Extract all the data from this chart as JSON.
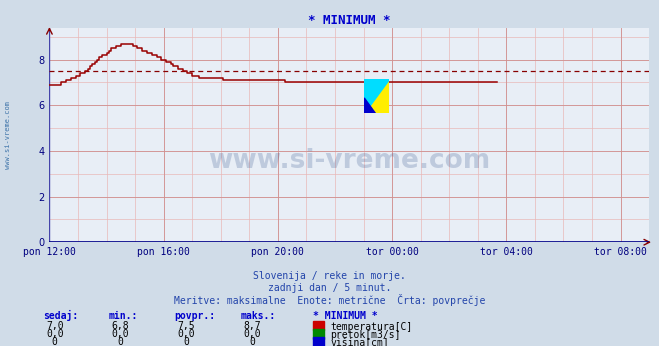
{
  "title": "* MINIMUM *",
  "title_color": "#0000cc",
  "bg_color": "#d0dce8",
  "plot_bg_color": "#e8eef6",
  "line_color": "#990000",
  "avg_line_color": "#880000",
  "avg_line_value": 7.5,
  "tick_color": "#000080",
  "ylabel_ticks": [
    0,
    2,
    4,
    6,
    8
  ],
  "ylim": [
    0,
    9.4
  ],
  "x_tick_labels": [
    "pon 12:00",
    "pon 16:00",
    "pon 20:00",
    "tor 00:00",
    "tor 04:00",
    "tor 08:00"
  ],
  "tick_positions": [
    0,
    48,
    96,
    144,
    192,
    240
  ],
  "xlim": [
    0,
    252
  ],
  "subtitle1": "Slovenija / reke in morje.",
  "subtitle2": "zadnji dan / 5 minut.",
  "subtitle3": "Meritve: maksimalne  Enote: metrične  Črta: povprečje",
  "subtitle_color": "#2244aa",
  "watermark_text": "www.si-vreme.com",
  "watermark_color": "#1a3a7a",
  "left_label": "www.si-vreme.com",
  "legend_title": "* MINIMUM *",
  "legend_items": [
    "temperatura[C]",
    "pretok[m3/s]",
    "višina[cm]"
  ],
  "legend_colors": [
    "#cc0000",
    "#008800",
    "#0000cc"
  ],
  "table_headers": [
    "sedaj:",
    "min.:",
    "povpr.:",
    "maks.:"
  ],
  "table_rows": [
    [
      "7,0",
      "6,8",
      "7,5",
      "8,7"
    ],
    [
      "0,0",
      "0,0",
      "0,0",
      "0,0"
    ],
    [
      "0",
      "0",
      "0",
      "0"
    ]
  ],
  "temp_data_y": [
    6.9,
    6.9,
    6.9,
    6.9,
    6.9,
    7.0,
    7.0,
    7.1,
    7.1,
    7.2,
    7.2,
    7.3,
    7.3,
    7.4,
    7.4,
    7.5,
    7.6,
    7.7,
    7.8,
    7.9,
    8.0,
    8.1,
    8.2,
    8.2,
    8.3,
    8.4,
    8.5,
    8.5,
    8.6,
    8.6,
    8.7,
    8.7,
    8.7,
    8.7,
    8.7,
    8.6,
    8.6,
    8.5,
    8.5,
    8.4,
    8.4,
    8.3,
    8.3,
    8.2,
    8.2,
    8.1,
    8.1,
    8.0,
    8.0,
    7.9,
    7.9,
    7.8,
    7.7,
    7.7,
    7.6,
    7.6,
    7.5,
    7.5,
    7.4,
    7.4,
    7.3,
    7.3,
    7.3,
    7.2,
    7.2,
    7.2,
    7.2,
    7.2,
    7.2,
    7.2,
    7.2,
    7.2,
    7.2,
    7.1,
    7.1,
    7.1,
    7.1,
    7.1,
    7.1,
    7.1,
    7.1,
    7.1,
    7.1,
    7.1,
    7.1,
    7.1,
    7.1,
    7.1,
    7.1,
    7.1,
    7.1,
    7.1,
    7.1,
    7.1,
    7.1,
    7.1,
    7.1,
    7.1,
    7.1,
    7.0,
    7.0,
    7.0,
    7.0,
    7.0,
    7.0,
    7.0,
    7.0,
    7.0,
    7.0,
    7.0,
    7.0,
    7.0,
    7.0,
    7.0,
    7.0,
    7.0,
    7.0,
    7.0,
    7.0,
    7.0,
    7.0,
    7.0,
    7.0,
    7.0,
    7.0,
    7.0,
    7.0,
    7.0,
    7.0,
    7.0,
    7.0,
    7.0,
    7.0,
    7.0,
    7.0,
    7.0,
    7.0,
    7.0,
    7.0,
    7.0,
    7.0,
    7.0,
    7.0,
    7.0,
    7.0,
    7.0,
    7.0,
    7.0,
    7.0,
    7.0,
    7.0,
    7.0,
    7.0,
    7.0,
    7.0,
    7.0,
    7.0,
    7.0,
    7.0,
    7.0,
    7.0,
    7.0,
    7.0,
    7.0,
    7.0,
    7.0,
    7.0,
    7.0,
    7.0,
    7.0,
    7.0,
    7.0,
    7.0,
    7.0,
    7.0,
    7.0,
    7.0,
    7.0,
    7.0,
    7.0,
    7.0,
    7.0,
    7.0,
    7.0,
    7.0,
    7.0,
    7.0,
    7.0,
    7.0
  ]
}
